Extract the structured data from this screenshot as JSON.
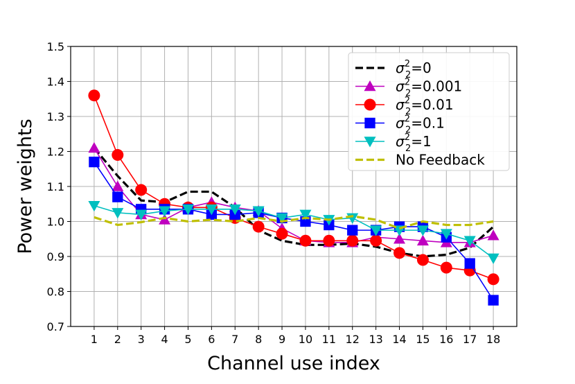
{
  "chart_data": {
    "type": "line",
    "title": "",
    "xlabel": "Channel use index",
    "ylabel": "Power weights",
    "x": [
      1,
      2,
      3,
      4,
      5,
      6,
      7,
      8,
      9,
      10,
      11,
      12,
      13,
      14,
      15,
      16,
      17,
      18
    ],
    "xlim": [
      0,
      19
    ],
    "ylim": [
      0.7,
      1.5
    ],
    "yticks": [
      "0.7",
      "0.8",
      "0.9",
      "1.0",
      "1.1",
      "1.2",
      "1.3",
      "1.4",
      "1.5"
    ],
    "grid": true,
    "legend_position": "top-right",
    "series": [
      {
        "name_base": "σ",
        "name_sub": "2",
        "name_sup": "2",
        "name_tail": "=0",
        "color": "#000000",
        "style": "dashed",
        "marker": "none",
        "values": [
          1.21,
          1.13,
          1.06,
          1.055,
          1.085,
          1.085,
          1.04,
          0.975,
          0.945,
          0.933,
          0.933,
          0.937,
          0.928,
          0.91,
          0.9,
          0.905,
          0.925,
          0.985
        ]
      },
      {
        "name_base": "σ",
        "name_sub": "2",
        "name_sup": "2",
        "name_tail": "=0.001",
        "color": "#bf00bf",
        "style": "solid",
        "marker": "triangle-up",
        "values": [
          1.21,
          1.1,
          1.02,
          1.005,
          1.04,
          1.055,
          1.04,
          1.03,
          0.98,
          0.945,
          0.94,
          0.94,
          0.955,
          0.95,
          0.945,
          0.94,
          0.94,
          0.96
        ]
      },
      {
        "name_base": "σ",
        "name_sub": "2",
        "name_sup": "2",
        "name_tail": "=0.01",
        "color": "#ff0000",
        "style": "solid",
        "marker": "circle",
        "values": [
          1.36,
          1.19,
          1.09,
          1.05,
          1.04,
          1.04,
          1.01,
          0.985,
          0.965,
          0.945,
          0.945,
          0.945,
          0.945,
          0.91,
          0.89,
          0.868,
          0.86,
          0.835
        ]
      },
      {
        "name_base": "σ",
        "name_sub": "2",
        "name_sup": "2",
        "name_tail": "=0.1",
        "color": "#0000ff",
        "style": "solid",
        "marker": "square",
        "values": [
          1.17,
          1.07,
          1.035,
          1.035,
          1.035,
          1.02,
          1.02,
          1.025,
          1.01,
          1.0,
          0.99,
          0.975,
          0.975,
          0.985,
          0.985,
          0.955,
          0.88,
          0.775
        ]
      },
      {
        "name_base": "σ",
        "name_sub": "2",
        "name_sup": "2",
        "name_tail": "=1",
        "color": "#00bfbf",
        "style": "solid",
        "marker": "triangle-down",
        "values": [
          1.045,
          1.025,
          1.02,
          1.03,
          1.035,
          1.035,
          1.035,
          1.03,
          1.01,
          1.02,
          1.005,
          1.01,
          0.975,
          0.975,
          0.975,
          0.965,
          0.945,
          0.895
        ]
      },
      {
        "name_base": "No Feedback",
        "name_sub": "",
        "name_sup": "",
        "name_tail": "",
        "color": "#bfbf00",
        "style": "dashed",
        "marker": "none",
        "values": [
          1.012,
          0.99,
          0.998,
          1.01,
          1.0,
          1.005,
          1.0,
          1.01,
          1.0,
          1.01,
          1.005,
          1.015,
          1.005,
          0.98,
          1.0,
          0.99,
          0.99,
          1.0
        ]
      }
    ]
  }
}
